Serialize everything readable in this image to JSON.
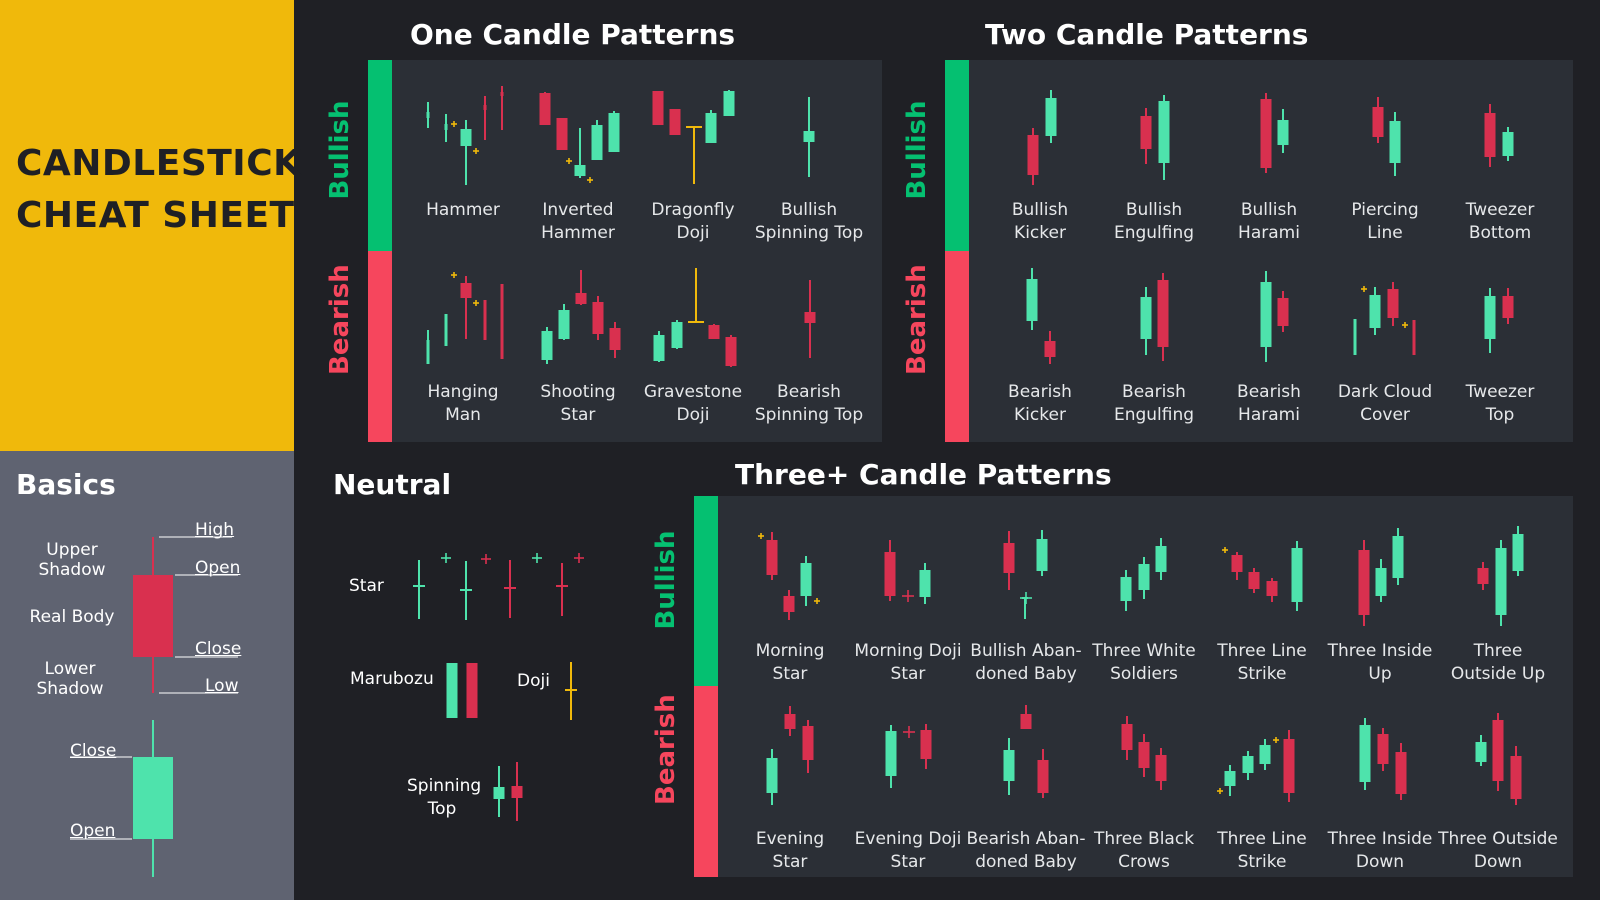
{
  "title": {
    "line1": "CANDLESTICK",
    "line2": "CHEAT SHEET"
  },
  "colors": {
    "bull": "#4ee3ac",
    "bear": "#d9304f",
    "doji": "#f0b90b",
    "bull_bar": "#05c071",
    "bear_bar": "#f6465d"
  },
  "basics": {
    "title": "Basics",
    "upper_shadow_1": "Upper",
    "upper_shadow_2": "Shadow",
    "real_body": "Real Body",
    "lower_shadow_1": "Lower",
    "lower_shadow_2": "Shadow",
    "high": "High",
    "open": "Open",
    "close": "Close",
    "low": "Low",
    "close2": "Close",
    "open2": "Open"
  },
  "sections": {
    "one": {
      "title": "One Candle Patterns",
      "bullish": "Bullish",
      "bearish": "Bearish"
    },
    "two": {
      "title": "Two Candle Patterns",
      "bullish": "Bullish",
      "bearish": "Bearish"
    },
    "neutral": {
      "title": "Neutral",
      "star": "Star",
      "marubozu": "Marubozu",
      "doji": "Doji",
      "spinning_1": "Spinning",
      "spinning_2": "Top"
    },
    "three": {
      "title": "Three+ Candle Patterns",
      "bullish": "Bullish",
      "bearish": "Bearish"
    }
  },
  "patterns": {
    "one_bull": [
      [
        "Hammer",
        ""
      ],
      [
        "Inverted",
        "Hammer"
      ],
      [
        "Dragonfly",
        "Doji"
      ],
      [
        "Bullish",
        "Spinning Top"
      ]
    ],
    "one_bear": [
      [
        "Hanging",
        "Man"
      ],
      [
        "Shooting",
        "Star"
      ],
      [
        "Gravestone",
        "Doji"
      ],
      [
        "Bearish",
        "Spinning Top"
      ]
    ],
    "two_bull": [
      [
        "Bullish",
        "Kicker"
      ],
      [
        "Bullish",
        "Engulfing"
      ],
      [
        "Bullish",
        "Harami"
      ],
      [
        "Piercing",
        "Line"
      ],
      [
        "Tweezer",
        "Bottom"
      ]
    ],
    "two_bear": [
      [
        "Bearish",
        "Kicker"
      ],
      [
        "Bearish",
        "Engulfing"
      ],
      [
        "Bearish",
        "Harami"
      ],
      [
        "Dark Cloud",
        "Cover"
      ],
      [
        "Tweezer",
        "Top"
      ]
    ],
    "three_bull": [
      [
        "Morning",
        "Star"
      ],
      [
        "Morning Doji",
        "Star"
      ],
      [
        "Bullish Aban-",
        "doned Baby"
      ],
      [
        "Three White",
        "Soldiers"
      ],
      [
        "Three Line",
        "Strike"
      ],
      [
        "Three Inside",
        "Up"
      ],
      [
        "Three",
        "Outside Up"
      ]
    ],
    "three_bear": [
      [
        "Evening",
        "Star"
      ],
      [
        "Evening Doji",
        "Star"
      ],
      [
        "Bearish Aban-",
        "doned Baby"
      ],
      [
        "Three Black",
        "Crows"
      ],
      [
        "Three Line",
        "Strike"
      ],
      [
        "Three Inside",
        "Down"
      ],
      [
        "Three Outside",
        "Down"
      ]
    ]
  }
}
